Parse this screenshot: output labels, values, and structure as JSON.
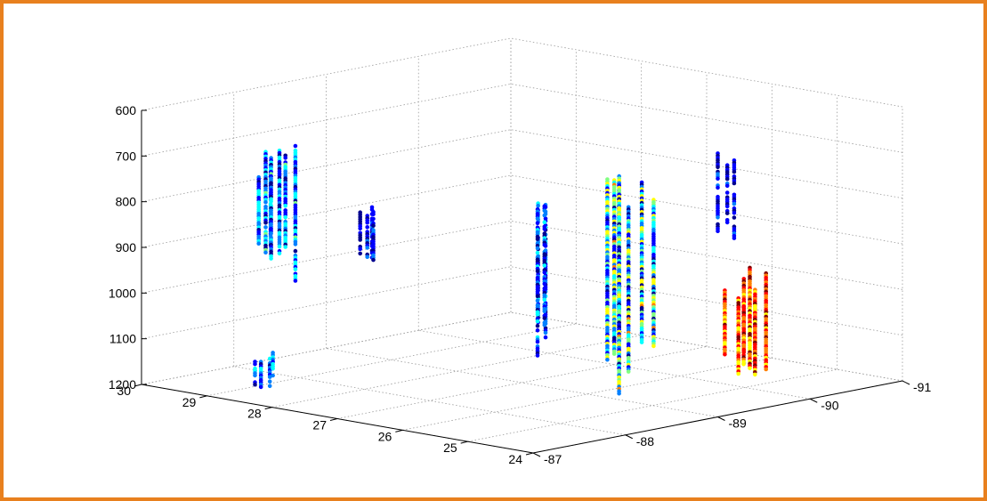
{
  "chart_data": {
    "type": "scatter",
    "dimensions": "3d",
    "axes": {
      "x": {
        "ticks": [
          "-87",
          "-88",
          "-89",
          "-90",
          "-91"
        ],
        "range": [
          -91,
          -87
        ]
      },
      "y": {
        "ticks": [
          "30",
          "29",
          "28",
          "27",
          "26",
          "25",
          "24"
        ],
        "range": [
          24,
          30
        ]
      },
      "z": {
        "ticks": [
          "600",
          "700",
          "800",
          "900",
          "1000",
          "1100",
          "1200"
        ],
        "range": [
          600,
          1200
        ],
        "reversed": true
      }
    },
    "grid": true,
    "colormap": "jet",
    "colors": [
      "#00008f",
      "#0000ff",
      "#0080ff",
      "#00ffff",
      "#80ff80",
      "#ffff00",
      "#ff8000",
      "#ff0000",
      "#800000"
    ],
    "clusters": [
      {
        "x": -87.0,
        "y": 28.0,
        "z": [
          600,
          945
        ],
        "density": 0.9,
        "color_max": 0.45
      },
      {
        "x": -87.0,
        "y": 28.0,
        "z": [
          1080,
          1160
        ],
        "density": 0.5,
        "color_max": 0.4
      },
      {
        "x": -87.7,
        "y": 27.5,
        "z": [
          750,
          920
        ],
        "density": 0.45,
        "color_max": 0.25
      },
      {
        "x": -88.2,
        "y": 25.6,
        "z": [
          690,
          1140
        ],
        "density": 0.5,
        "color_max": 0.35
      },
      {
        "x": -88.8,
        "y": 25.2,
        "z": [
          690,
          1180
        ],
        "density": 1.0,
        "color_max": 0.7
      },
      {
        "x": -89.9,
        "y": 25.0,
        "z": [
          940,
          1190
        ],
        "density": 1.0,
        "color_max": 1.0
      },
      {
        "x": -89.9,
        "y": 25.0,
        "z": [
          650,
          900
        ],
        "density": 0.35,
        "color_max": 0.2
      }
    ]
  }
}
